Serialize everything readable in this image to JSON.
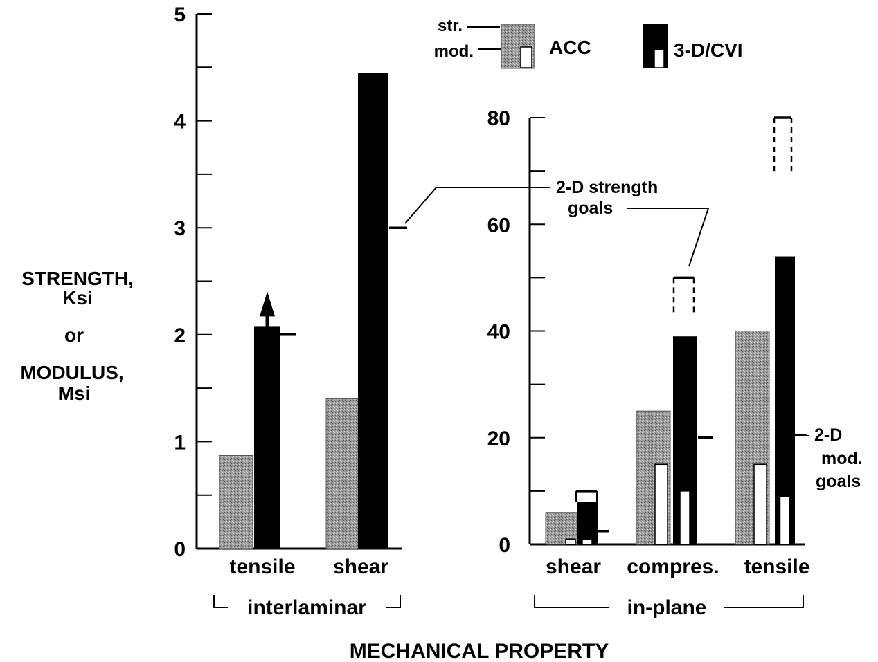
{
  "y_axis_label_lines": [
    "STRENGTH,",
    "Ksi",
    "or",
    "MODULUS,",
    "Msi"
  ],
  "x_axis_title": "MECHANICAL PROPERTY",
  "legend": {
    "strength_label": "str.",
    "modulus_label": "mod.",
    "series": [
      {
        "name": "ACC",
        "color": "#8c8c8c"
      },
      {
        "name": "3-D/CVI",
        "color": "#000000"
      }
    ]
  },
  "annotations": {
    "strength_goals_lines": [
      "2-D strength",
      "goals"
    ],
    "modulus_goals_lines": [
      "2-D",
      "mod.",
      "goals"
    ]
  },
  "chart_data": [
    {
      "type": "bar",
      "group_label": "interlaminar",
      "categories": [
        "tensile",
        "shear"
      ],
      "ylim": [
        0,
        5
      ],
      "y_ticks": [
        0,
        1,
        2,
        3,
        4,
        5
      ],
      "series": [
        {
          "name": "ACC",
          "strength": [
            0.87,
            1.4
          ]
        },
        {
          "name": "3-D/CVI",
          "strength": [
            2.08,
            4.45
          ]
        }
      ],
      "strength_exceeds": [
        true,
        false
      ],
      "goals_2d_strength": [
        2.0,
        3.0
      ]
    },
    {
      "type": "bar",
      "group_label": "in-plane",
      "categories": [
        "shear",
        "compres.",
        "tensile"
      ],
      "ylim": [
        0,
        80
      ],
      "y_ticks": [
        0,
        20,
        40,
        60,
        80
      ],
      "series": [
        {
          "name": "ACC",
          "strength": [
            6,
            25,
            40
          ],
          "modulus": [
            1,
            15,
            15
          ]
        },
        {
          "name": "3-D/CVI",
          "strength": [
            8,
            39,
            54
          ],
          "modulus": [
            1,
            10,
            9
          ]
        }
      ],
      "goals_2d_strength": [
        10,
        50,
        80
      ],
      "goals_2d_strength_lower": [
        8,
        43,
        70
      ],
      "goals_2d_modulus": [
        2.5,
        20,
        20.5
      ]
    }
  ]
}
